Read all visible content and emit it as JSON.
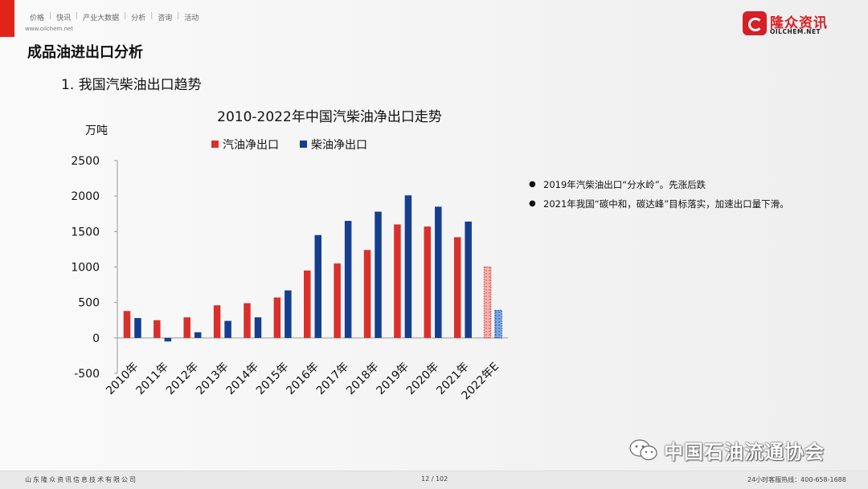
{
  "header": {
    "nav": [
      "价格",
      "快讯",
      "产业大数据",
      "分析",
      "咨询",
      "活动"
    ],
    "url": "www.oilchem.net",
    "logo_cn": "隆众资讯",
    "logo_en": "OILCHEM.NET"
  },
  "section_title": "成品油进出口分析",
  "subtitle": "1. 我国汽柴油出口趋势",
  "bullets": [
    "2019年汽柴油出口“分水岭”。先涨后跌",
    "2021年我国“碳中和，碳达峰”目标落实，加速出口量下滑。"
  ],
  "footer": {
    "company": "山东隆众资讯信息技术有限公司",
    "page": "12 / 102",
    "hotline": "24小时客服热线：400-658-1688"
  },
  "wechat_label": "中国石油流通协会",
  "colors": {
    "gasoline": "#d9302b",
    "diesel": "#153e8f",
    "accent": "#e2231a"
  },
  "chart_data": {
    "type": "bar",
    "title": "2010-2022年中国汽柴油净出口走势",
    "ylabel": "万吨",
    "xlabel": "",
    "ylim": [
      -500,
      2500
    ],
    "yticks": [
      -500,
      0,
      500,
      1000,
      1500,
      2000,
      2500
    ],
    "grid": false,
    "legend_position": "top",
    "categories": [
      "2010年",
      "2011年",
      "2012年",
      "2013年",
      "2014年",
      "2015年",
      "2016年",
      "2017年",
      "2018年",
      "2019年",
      "2020年",
      "2021年",
      "2022年E"
    ],
    "series": [
      {
        "name": "汽油净出口",
        "color": "#d9302b",
        "values": [
          380,
          250,
          290,
          460,
          490,
          570,
          950,
          1050,
          1240,
          1600,
          1570,
          1420,
          1000
        ]
      },
      {
        "name": "柴油净出口",
        "color": "#153e8f",
        "values": [
          280,
          -50,
          80,
          240,
          290,
          670,
          1450,
          1650,
          1780,
          2010,
          1850,
          1640,
          390
        ]
      }
    ],
    "estimated_category": "2022年E"
  }
}
